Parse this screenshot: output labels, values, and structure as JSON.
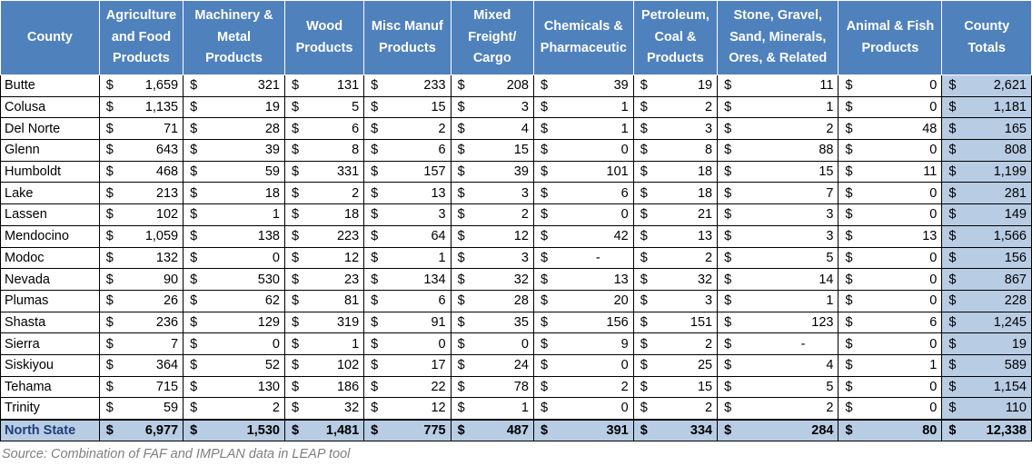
{
  "headers": [
    "County",
    "Agriculture\nand Food\nProducts",
    "Machinery &\nMetal\nProducts",
    "Wood\nProducts",
    "Misc Manuf\nProducts",
    "Mixed\nFreight/\nCargo",
    "Chemicals &\nPharmaceutic",
    "Petroleum,\nCoal &\nProducts",
    "Stone, Gravel,\nSand, Minerals,\nOres, & Related",
    "Animal & Fish\nProducts",
    "County\nTotals"
  ],
  "currency_symbol": "$",
  "rows": [
    {
      "county": "Butte",
      "values": [
        "1,659",
        "321",
        "131",
        "233",
        "208",
        "39",
        "19",
        "11",
        "0",
        "2,621"
      ]
    },
    {
      "county": "Colusa",
      "values": [
        "1,135",
        "19",
        "5",
        "15",
        "3",
        "1",
        "2",
        "1",
        "0",
        "1,181"
      ]
    },
    {
      "county": "Del Norte",
      "values": [
        "71",
        "28",
        "6",
        "2",
        "4",
        "1",
        "3",
        "2",
        "48",
        "165"
      ]
    },
    {
      "county": "Glenn",
      "values": [
        "643",
        "39",
        "8",
        "6",
        "15",
        "0",
        "8",
        "88",
        "0",
        "808"
      ]
    },
    {
      "county": "Humboldt",
      "values": [
        "468",
        "59",
        "331",
        "157",
        "39",
        "101",
        "18",
        "15",
        "11",
        "1,199"
      ]
    },
    {
      "county": "Lake",
      "values": [
        "213",
        "18",
        "2",
        "13",
        "3",
        "6",
        "18",
        "7",
        "0",
        "281"
      ]
    },
    {
      "county": "Lassen",
      "values": [
        "102",
        "1",
        "18",
        "3",
        "2",
        "0",
        "21",
        "3",
        "0",
        "149"
      ]
    },
    {
      "county": "Mendocino",
      "values": [
        "1,059",
        "138",
        "223",
        "64",
        "12",
        "42",
        "13",
        "3",
        "13",
        "1,566"
      ]
    },
    {
      "county": "Modoc",
      "values": [
        "132",
        "0",
        "12",
        "1",
        "3",
        "-",
        "2",
        "5",
        "0",
        "156"
      ]
    },
    {
      "county": "Nevada",
      "values": [
        "90",
        "530",
        "23",
        "134",
        "32",
        "13",
        "32",
        "14",
        "0",
        "867"
      ]
    },
    {
      "county": "Plumas",
      "values": [
        "26",
        "62",
        "81",
        "6",
        "28",
        "20",
        "3",
        "1",
        "0",
        "228"
      ]
    },
    {
      "county": "Shasta",
      "values": [
        "236",
        "129",
        "319",
        "91",
        "35",
        "156",
        "151",
        "123",
        "6",
        "1,245"
      ]
    },
    {
      "county": "Sierra",
      "values": [
        "7",
        "0",
        "1",
        "0",
        "0",
        "9",
        "2",
        "-",
        "0",
        "19"
      ]
    },
    {
      "county": "Siskiyou",
      "values": [
        "364",
        "52",
        "102",
        "17",
        "24",
        "0",
        "25",
        "4",
        "1",
        "589"
      ]
    },
    {
      "county": "Tehama",
      "values": [
        "715",
        "130",
        "186",
        "22",
        "78",
        "2",
        "15",
        "5",
        "0",
        "1,154"
      ]
    },
    {
      "county": "Trinity",
      "values": [
        "59",
        "2",
        "32",
        "12",
        "1",
        "0",
        "2",
        "2",
        "0",
        "110"
      ]
    }
  ],
  "total_row": {
    "county": "North State",
    "values": [
      "6,977",
      "1,530",
      "1,481",
      "775",
      "487",
      "391",
      "334",
      "284",
      "80",
      "12,338"
    ]
  },
  "source": "Source: Combination of FAF and IMPLAN data in LEAP tool"
}
